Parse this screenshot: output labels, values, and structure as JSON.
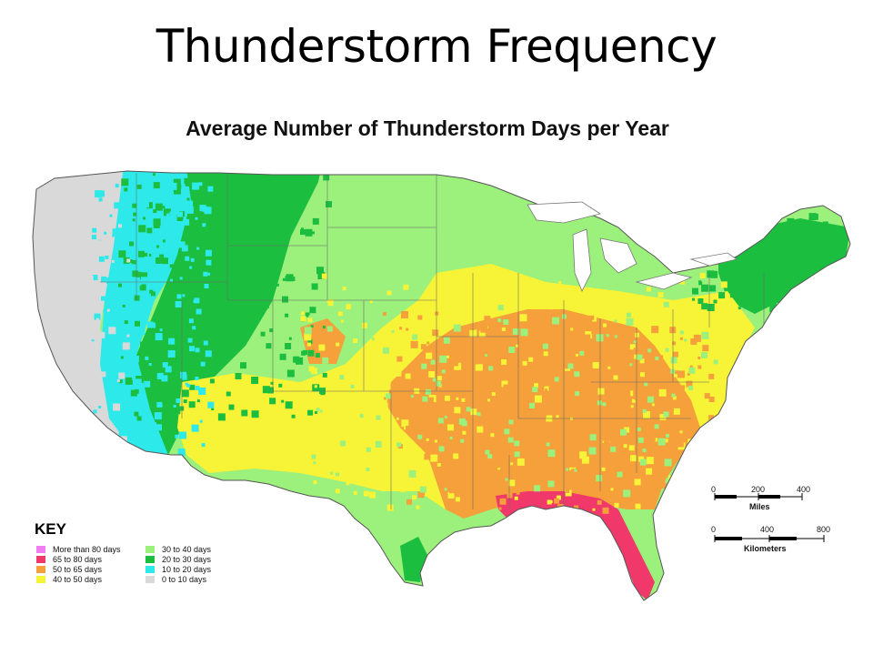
{
  "slide": {
    "title": "Thunderstorm Frequency"
  },
  "map": {
    "title": "Average Number of Thunderstorm Days per Year",
    "region": "Contiguous United States",
    "colors": {
      "very_high": "#ef7ff0",
      "high": "#f0386a",
      "upper_mid": "#f5a03b",
      "mid": "#f7f337",
      "lower_mid": "#9cf07c",
      "low": "#1cbe3f",
      "very_low": "#2ee9ea",
      "minimal": "#d9d9d9"
    }
  },
  "key": {
    "title": "KEY",
    "items": [
      {
        "label": "More than 80 days",
        "color": "#ef7ff0"
      },
      {
        "label": "30 to 40 days",
        "color": "#9cf07c"
      },
      {
        "label": "65 to 80 days",
        "color": "#f0386a"
      },
      {
        "label": "20 to 30 days",
        "color": "#1cbe3f"
      },
      {
        "label": "50 to 65 days",
        "color": "#f5a03b"
      },
      {
        "label": "10 to 20 days",
        "color": "#2ee9ea"
      },
      {
        "label": "40 to 50 days",
        "color": "#f7f337"
      },
      {
        "label": "0 to 10 days",
        "color": "#d9d9d9"
      }
    ]
  },
  "scale": {
    "miles": {
      "ticks": [
        "0",
        "200",
        "400"
      ],
      "unit": "Miles"
    },
    "kilometers": {
      "ticks": [
        "0",
        "400",
        "800"
      ],
      "unit": "Kilometers"
    }
  }
}
